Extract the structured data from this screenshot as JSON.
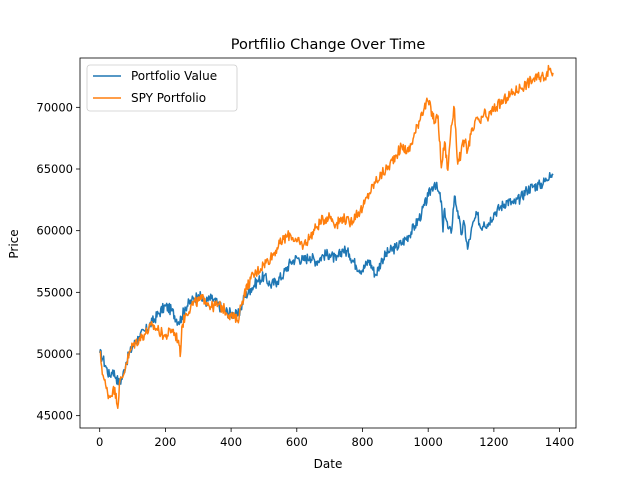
{
  "chart_data": {
    "type": "line",
    "title": "Portfilio Change Over Time",
    "xlabel": "Date",
    "ylabel": "Price",
    "xlim": [
      -60,
      1450
    ],
    "ylim": [
      44000,
      74000
    ],
    "xticks": [
      0,
      200,
      400,
      600,
      800,
      1000,
      1200,
      1400
    ],
    "yticks": [
      45000,
      50000,
      55000,
      60000,
      65000,
      70000
    ],
    "grid": false,
    "legend_position": "top-left",
    "series": [
      {
        "name": "Portfolio Value",
        "color": "#1f77b4",
        "x": [
          0,
          10,
          20,
          30,
          40,
          50,
          60,
          70,
          80,
          100,
          120,
          140,
          160,
          180,
          200,
          220,
          240,
          250,
          260,
          280,
          300,
          320,
          340,
          360,
          380,
          400,
          420,
          430,
          440,
          460,
          480,
          500,
          520,
          540,
          560,
          580,
          600,
          620,
          640,
          660,
          680,
          700,
          720,
          740,
          760,
          780,
          800,
          820,
          840,
          860,
          880,
          900,
          920,
          940,
          960,
          980,
          1000,
          1010,
          1020,
          1030,
          1040,
          1045,
          1050,
          1060,
          1070,
          1080,
          1090,
          1100,
          1110,
          1120,
          1130,
          1140,
          1150,
          1160,
          1170,
          1180,
          1200,
          1220,
          1240,
          1260,
          1280,
          1300,
          1320,
          1340,
          1360,
          1370,
          1380
        ],
        "y": [
          50100,
          49600,
          48900,
          48200,
          48700,
          48100,
          47600,
          48200,
          49300,
          50600,
          51400,
          51900,
          52600,
          53300,
          53900,
          53500,
          52600,
          53000,
          53800,
          54300,
          54800,
          54200,
          54500,
          54000,
          53500,
          53300,
          53100,
          53700,
          54600,
          55300,
          55900,
          56300,
          55600,
          55900,
          56500,
          57400,
          57800,
          57600,
          57900,
          57500,
          58000,
          58100,
          57600,
          58500,
          58100,
          57200,
          56800,
          57600,
          56400,
          57700,
          58300,
          58600,
          59000,
          59600,
          60400,
          61400,
          62800,
          63400,
          63900,
          63200,
          62400,
          59900,
          61800,
          60200,
          59800,
          62800,
          61600,
          59700,
          60600,
          58500,
          59800,
          60800,
          61300,
          60200,
          60700,
          60500,
          61400,
          61900,
          62400,
          62200,
          62600,
          63300,
          63600,
          63700,
          64100,
          64700,
          64500
        ]
      },
      {
        "name": "SPY Portfolio",
        "color": "#ff7f0e",
        "x": [
          0,
          10,
          20,
          30,
          40,
          50,
          55,
          60,
          70,
          80,
          100,
          120,
          140,
          160,
          180,
          200,
          220,
          240,
          245,
          250,
          260,
          280,
          300,
          320,
          340,
          360,
          380,
          400,
          420,
          430,
          440,
          460,
          480,
          500,
          520,
          540,
          560,
          580,
          600,
          620,
          640,
          660,
          680,
          700,
          720,
          740,
          760,
          780,
          800,
          820,
          840,
          860,
          880,
          900,
          920,
          940,
          960,
          980,
          1000,
          1020,
          1030,
          1040,
          1050,
          1060,
          1070,
          1080,
          1090,
          1100,
          1110,
          1120,
          1130,
          1140,
          1150,
          1160,
          1170,
          1180,
          1200,
          1220,
          1240,
          1260,
          1280,
          1300,
          1320,
          1340,
          1360,
          1370,
          1380
        ],
        "y": [
          50200,
          48300,
          47200,
          46500,
          47100,
          46800,
          45600,
          47600,
          48100,
          49200,
          50700,
          51200,
          51700,
          52300,
          51900,
          51400,
          52000,
          51100,
          49800,
          52200,
          53100,
          54000,
          54300,
          54500,
          53800,
          54000,
          53600,
          53100,
          52700,
          53900,
          54900,
          56100,
          56700,
          57300,
          57800,
          58600,
          59300,
          59700,
          59100,
          58800,
          59500,
          60300,
          60900,
          61200,
          60500,
          61100,
          60600,
          61300,
          61800,
          63000,
          64000,
          64600,
          65200,
          66100,
          66800,
          66400,
          67900,
          69600,
          70500,
          68800,
          69300,
          65100,
          67200,
          64900,
          68500,
          69900,
          65400,
          66300,
          67300,
          66500,
          67800,
          68300,
          69200,
          68700,
          69500,
          69100,
          69900,
          70300,
          70800,
          71200,
          71600,
          71900,
          72300,
          72400,
          72700,
          73100,
          72800
        ]
      }
    ]
  }
}
